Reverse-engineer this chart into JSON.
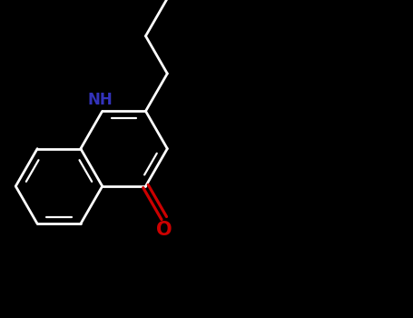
{
  "bg_color": "#000000",
  "bond_color": "#ffffff",
  "nh_color": "#3333bb",
  "o_color": "#cc0000",
  "bond_width": 2.0,
  "figsize": [
    4.55,
    3.5
  ],
  "dpi": 100,
  "xlim": [
    0,
    10
  ],
  "ylim": [
    0,
    7.7
  ]
}
